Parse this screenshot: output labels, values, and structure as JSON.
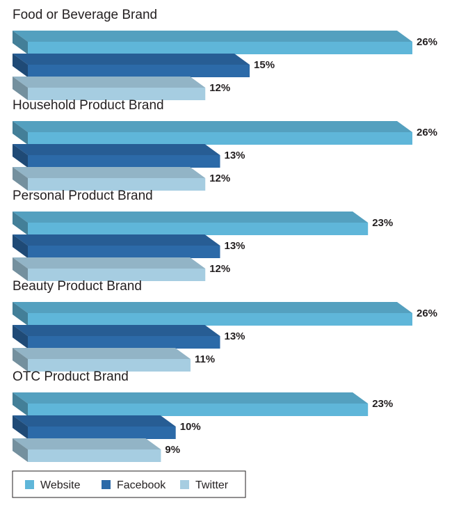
{
  "chart_data": {
    "type": "bar",
    "orientation": "horizontal",
    "title": "",
    "xlabel": "",
    "ylabel": "",
    "unit": "%",
    "categories": [
      "Food or Beverage Brand",
      "Household Product Brand",
      "Personal Product Brand",
      "Beauty Product Brand",
      "OTC Product Brand"
    ],
    "series": [
      {
        "name": "Website",
        "color": "#5fb6d9",
        "values": [
          26,
          26,
          23,
          26,
          23
        ]
      },
      {
        "name": "Facebook",
        "color": "#2c6aa8",
        "values": [
          15,
          13,
          13,
          13,
          10
        ]
      },
      {
        "name": "Twitter",
        "color": "#a6cde1",
        "values": [
          12,
          12,
          12,
          11,
          9
        ]
      }
    ],
    "legend_position": "bottom-left",
    "grid": false
  }
}
